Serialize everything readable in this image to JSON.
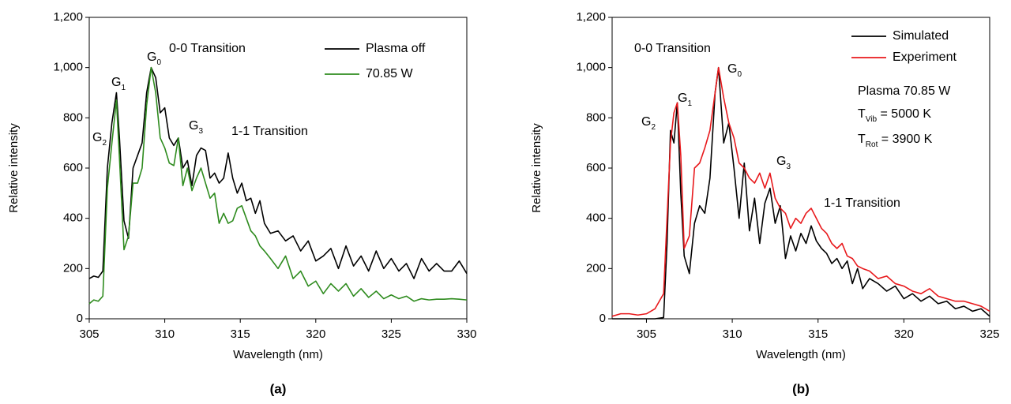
{
  "chart_data": [
    {
      "type": "line",
      "panel_label": "(a)",
      "xlabel": "Wavelength (nm)",
      "ylabel": "Relative intensity",
      "xlim": [
        305,
        330
      ],
      "xticks": [
        305,
        310,
        315,
        320,
        325,
        330
      ],
      "ylim": [
        0,
        1200
      ],
      "yticks": [
        0,
        200,
        400,
        600,
        800,
        {
          "value": 1000,
          "label": "1,000"
        },
        {
          "value": 1200,
          "label": "1,200"
        }
      ],
      "legend": "top-right",
      "x": [
        305,
        305.3,
        305.6,
        305.9,
        306.2,
        306.5,
        306.8,
        307.0,
        307.3,
        307.6,
        307.9,
        308.2,
        308.5,
        308.8,
        309.1,
        309.4,
        309.7,
        310.0,
        310.3,
        310.6,
        310.9,
        311.2,
        311.5,
        311.8,
        312.1,
        312.4,
        312.7,
        313.0,
        313.3,
        313.6,
        313.9,
        314.2,
        314.5,
        314.8,
        315.1,
        315.4,
        315.7,
        316.0,
        316.3,
        316.6,
        317.0,
        317.5,
        318.0,
        318.5,
        319.0,
        319.5,
        320.0,
        320.5,
        321.0,
        321.5,
        322.0,
        322.5,
        323.0,
        323.5,
        324.0,
        324.5,
        325.0,
        325.5,
        326.0,
        326.5,
        327.0,
        327.5,
        328.0,
        328.5,
        329.0,
        329.5,
        330.0
      ],
      "series": [
        {
          "name": "Plasma off",
          "color": "#000000",
          "values": [
            160,
            170,
            165,
            190,
            600,
            780,
            900,
            720,
            390,
            320,
            600,
            650,
            700,
            900,
            1000,
            960,
            820,
            840,
            720,
            690,
            720,
            600,
            630,
            530,
            650,
            680,
            670,
            560,
            580,
            540,
            560,
            660,
            560,
            500,
            540,
            470,
            480,
            420,
            470,
            380,
            340,
            350,
            310,
            330,
            270,
            310,
            230,
            250,
            280,
            200,
            290,
            210,
            250,
            190,
            270,
            200,
            240,
            190,
            220,
            160,
            240,
            190,
            220,
            190,
            190,
            230,
            180
          ]
        },
        {
          "name": "70.85 W",
          "color": "#2e8b1e",
          "values": [
            60,
            75,
            70,
            90,
            520,
            700,
            870,
            640,
            275,
            330,
            540,
            540,
            600,
            850,
            1000,
            900,
            720,
            680,
            620,
            610,
            720,
            530,
            600,
            510,
            560,
            600,
            540,
            480,
            500,
            380,
            420,
            380,
            390,
            440,
            450,
            400,
            350,
            330,
            290,
            270,
            240,
            200,
            250,
            160,
            190,
            130,
            150,
            100,
            140,
            110,
            140,
            90,
            120,
            85,
            110,
            80,
            95,
            80,
            90,
            70,
            80,
            75,
            78,
            78,
            80,
            78,
            75
          ]
        }
      ],
      "annotations": [
        {
          "text": "0-0 Transition"
        },
        {
          "text": "1-1 Transition"
        },
        {
          "text": "G",
          "sub": "0"
        },
        {
          "text": "G",
          "sub": "1"
        },
        {
          "text": "G",
          "sub": "2"
        },
        {
          "text": "G",
          "sub": "3"
        }
      ]
    },
    {
      "type": "line",
      "panel_label": "(b)",
      "xlabel": "Wavelength (nm)",
      "ylabel": "Relative intensity",
      "xlim": [
        303,
        325
      ],
      "xticks": [
        305,
        310,
        315,
        320,
        325
      ],
      "ylim": [
        0,
        1200
      ],
      "yticks": [
        0,
        200,
        400,
        600,
        800,
        {
          "value": 1000,
          "label": "1,000"
        },
        {
          "value": 1200,
          "label": "1,200"
        }
      ],
      "legend": "top-right",
      "x": [
        303,
        303.5,
        304,
        304.5,
        305,
        305.5,
        306,
        306.2,
        306.4,
        306.6,
        306.8,
        307.0,
        307.2,
        307.5,
        307.8,
        308.1,
        308.4,
        308.7,
        309.0,
        309.2,
        309.5,
        309.8,
        310.1,
        310.4,
        310.7,
        311.0,
        311.3,
        311.6,
        311.9,
        312.2,
        312.5,
        312.8,
        313.1,
        313.4,
        313.7,
        314.0,
        314.3,
        314.6,
        314.9,
        315.2,
        315.5,
        315.8,
        316.1,
        316.4,
        316.7,
        317.0,
        317.3,
        317.6,
        318.0,
        318.5,
        319.0,
        319.5,
        320.0,
        320.5,
        321.0,
        321.5,
        322.0,
        322.5,
        323.0,
        323.5,
        324.0,
        324.5,
        325.0
      ],
      "series": [
        {
          "name": "Simulated",
          "color": "#000000",
          "values": [
            0,
            0,
            0,
            0,
            0,
            0,
            5,
            300,
            750,
            700,
            860,
            500,
            250,
            180,
            380,
            450,
            420,
            560,
            900,
            1000,
            700,
            780,
            600,
            400,
            620,
            350,
            480,
            300,
            460,
            520,
            380,
            450,
            240,
            330,
            270,
            340,
            300,
            370,
            310,
            280,
            260,
            220,
            240,
            200,
            230,
            140,
            200,
            120,
            160,
            140,
            110,
            130,
            80,
            100,
            70,
            90,
            60,
            70,
            40,
            50,
            30,
            40,
            10
          ]
        },
        {
          "name": "Experiment",
          "color": "#e8191c",
          "values": [
            10,
            20,
            20,
            15,
            20,
            40,
            100,
            400,
            700,
            820,
            860,
            650,
            280,
            330,
            600,
            620,
            680,
            750,
            900,
            1000,
            880,
            780,
            720,
            620,
            600,
            560,
            540,
            580,
            520,
            580,
            480,
            440,
            420,
            360,
            400,
            380,
            420,
            440,
            400,
            360,
            340,
            300,
            280,
            300,
            250,
            240,
            210,
            200,
            190,
            160,
            170,
            140,
            130,
            110,
            100,
            120,
            90,
            80,
            70,
            70,
            60,
            50,
            30
          ]
        }
      ],
      "annotations": [
        {
          "text": "0-0 Transition"
        },
        {
          "text": "1-1 Transition"
        },
        {
          "text": "G",
          "sub": "0"
        },
        {
          "text": "G",
          "sub": "1"
        },
        {
          "text": "G",
          "sub": "2"
        },
        {
          "text": "G",
          "sub": "3"
        },
        {
          "text": "Plasma 70.85 W"
        },
        {
          "text": "T",
          "sub": "Vib",
          "tail": " = 5000 K"
        },
        {
          "text": "T",
          "sub": "Rot",
          "tail": " = 3900 K"
        }
      ]
    }
  ]
}
